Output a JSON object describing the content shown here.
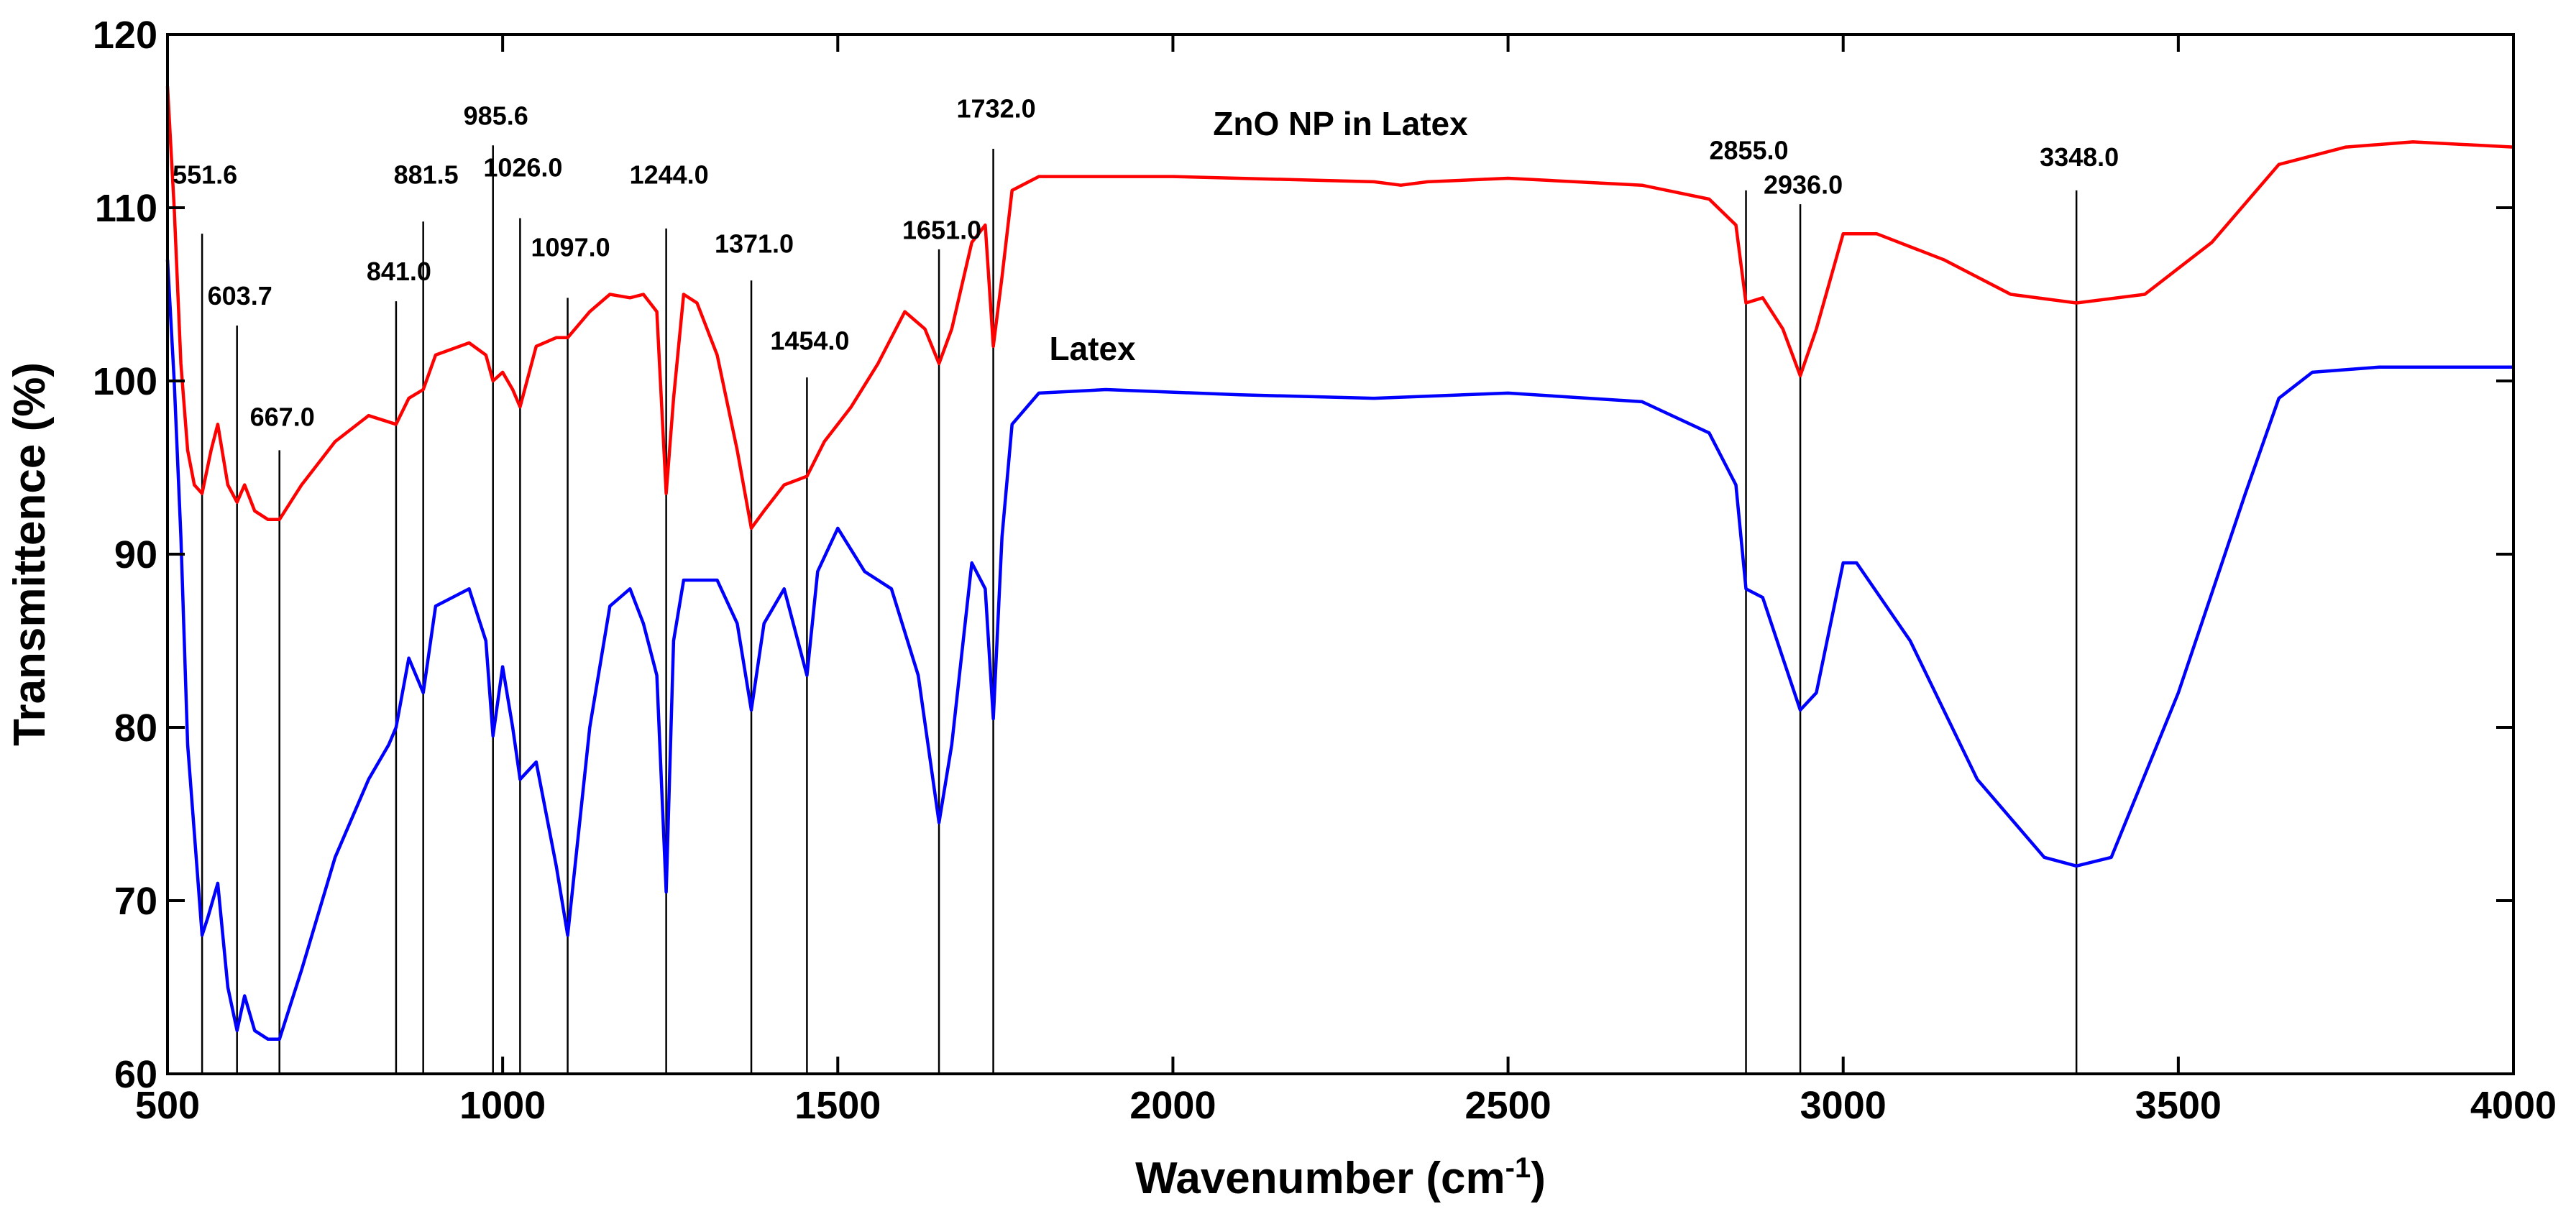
{
  "chart_data": {
    "type": "line",
    "title": "",
    "xlabel": "Wavenumber (cm",
    "xlabel_sup": "-1",
    "xlabel_close": ")",
    "ylabel": "Transmittence (%)",
    "xlim": [
      500,
      4000
    ],
    "ylim": [
      60,
      120
    ],
    "x_ticks": [
      500,
      1000,
      1500,
      2000,
      2500,
      3000,
      3500,
      4000
    ],
    "y_ticks": [
      60,
      70,
      80,
      90,
      100,
      110,
      120
    ],
    "series": [
      {
        "name": "ZnO NP in Latex",
        "color": "#ff0000",
        "x": [
          500,
          510,
          520,
          530,
          540,
          551.6,
          565,
          575,
          590,
          603.7,
          615,
          630,
          650,
          667,
          700,
          750,
          800,
          841,
          860,
          881.5,
          900,
          950,
          975,
          985.6,
          1000,
          1015,
          1026,
          1050,
          1080,
          1097,
          1130,
          1160,
          1190,
          1210,
          1230,
          1244,
          1255,
          1270,
          1290,
          1320,
          1350,
          1371,
          1390,
          1420,
          1454,
          1480,
          1520,
          1560,
          1600,
          1630,
          1651,
          1670,
          1700,
          1720,
          1732,
          1745,
          1760,
          1800,
          2000,
          2300,
          2340,
          2380,
          2500,
          2700,
          2800,
          2840,
          2855,
          2880,
          2910,
          2936,
          2960,
          3000,
          3050,
          3150,
          3250,
          3348,
          3450,
          3550,
          3650,
          3750,
          3850,
          4000
        ],
        "y": [
          117,
          110,
          101,
          96,
          94,
          93.5,
          96,
          97.5,
          94,
          93,
          94,
          92.5,
          92,
          92,
          94,
          96.5,
          98,
          97.5,
          99,
          99.5,
          101.5,
          102.2,
          101.5,
          100,
          100.5,
          99.5,
          98.5,
          102,
          102.5,
          102.5,
          104,
          105,
          104.8,
          105,
          104,
          93.5,
          99,
          105,
          104.5,
          101.5,
          96,
          91.5,
          92.5,
          94,
          94.5,
          96.5,
          98.5,
          101,
          104,
          103,
          101,
          103,
          108,
          109,
          102,
          106,
          111,
          111.8,
          111.8,
          111.5,
          111.3,
          111.5,
          111.7,
          111.3,
          110.5,
          109,
          104.5,
          104.8,
          103,
          100.3,
          103,
          108.5,
          108.5,
          107,
          105,
          104.5,
          105,
          108,
          112.5,
          113.5,
          113.8,
          113.5
        ]
      },
      {
        "name": "Latex",
        "color": "#0000ff",
        "x": [
          500,
          510,
          520,
          530,
          551.6,
          560,
          575,
          590,
          603.7,
          615,
          630,
          650,
          667,
          700,
          750,
          800,
          830,
          841,
          860,
          881.5,
          900,
          950,
          975,
          985.6,
          1000,
          1015,
          1026,
          1050,
          1080,
          1097,
          1130,
          1160,
          1190,
          1210,
          1230,
          1244,
          1255,
          1270,
          1290,
          1320,
          1350,
          1371,
          1390,
          1420,
          1454,
          1470,
          1500,
          1540,
          1580,
          1620,
          1651,
          1670,
          1700,
          1720,
          1732,
          1745,
          1760,
          1800,
          1900,
          2100,
          2300,
          2500,
          2700,
          2800,
          2840,
          2855,
          2880,
          2910,
          2936,
          2960,
          3000,
          3020,
          3100,
          3200,
          3300,
          3348,
          3400,
          3500,
          3600,
          3650,
          3700,
          3800,
          3900,
          4000
        ],
        "y": [
          107,
          100,
          91,
          79,
          68,
          69,
          71,
          65,
          62.5,
          64.5,
          62.5,
          62,
          62,
          66,
          72.5,
          77,
          79,
          80,
          84,
          82,
          87,
          88,
          85,
          79.5,
          83.5,
          80,
          77,
          78,
          72,
          68,
          80,
          87,
          88,
          86,
          83,
          70.5,
          85,
          88.5,
          88.5,
          88.5,
          86,
          81,
          86,
          88,
          83,
          89,
          91.5,
          89,
          88,
          83,
          74.5,
          79,
          89.5,
          88,
          80.5,
          91,
          97.5,
          99.3,
          99.5,
          99.2,
          99,
          99.3,
          98.8,
          97,
          94,
          88,
          87.5,
          84,
          81,
          82,
          89.5,
          89.5,
          85,
          77,
          72.5,
          72,
          72.5,
          82,
          93.5,
          99,
          100.5,
          100.8,
          100.8,
          100.8
        ]
      }
    ],
    "peaks": [
      {
        "label": "551.6",
        "x": 551.6,
        "label_y": 111.4,
        "line_top": 108.5
      },
      {
        "label": "603.7",
        "x": 603.7,
        "label_y": 104.4,
        "line_top": 103.2
      },
      {
        "label": "667.0",
        "x": 667.0,
        "label_y": 97.4,
        "line_top": 96
      },
      {
        "label": "841.0",
        "x": 841.0,
        "label_y": 105.8,
        "line_top": 104.6
      },
      {
        "label": "881.5",
        "x": 881.5,
        "label_y": 111.4,
        "line_top": 109.2
      },
      {
        "label": "985.6",
        "x": 985.6,
        "label_y": 114.8,
        "line_top": 113.6
      },
      {
        "label": "1026.0",
        "x": 1026.0,
        "label_y": 111.8,
        "line_top": 109.4
      },
      {
        "label": "1097.0",
        "x": 1097.0,
        "label_y": 107.2,
        "line_top": 104.8
      },
      {
        "label": "1244.0",
        "x": 1244.0,
        "label_y": 111.4,
        "line_top": 108.8
      },
      {
        "label": "1371.0",
        "x": 1371.0,
        "label_y": 107.4,
        "line_top": 105.8
      },
      {
        "label": "1454.0",
        "x": 1454.0,
        "label_y": 101.8,
        "line_top": 100.2
      },
      {
        "label": "1651.0",
        "x": 1651.0,
        "label_y": 108.2,
        "line_top": 107.6
      },
      {
        "label": "1732.0",
        "x": 1732.0,
        "label_y": 115.2,
        "line_top": 113.4
      },
      {
        "label": "2855.0",
        "x": 2855.0,
        "label_y": 112.8,
        "line_top": 111
      },
      {
        "label": "2936.0",
        "x": 2936.0,
        "label_y": 110.8,
        "line_top": 110.2
      },
      {
        "label": "3348.0",
        "x": 3348.0,
        "label_y": 112.4,
        "line_top": 111
      }
    ],
    "series_labels": [
      {
        "text": "ZnO NP in Latex",
        "x": 2250,
        "y": 114.2
      },
      {
        "text": "Latex",
        "x": 1880,
        "y": 101.2
      }
    ]
  }
}
